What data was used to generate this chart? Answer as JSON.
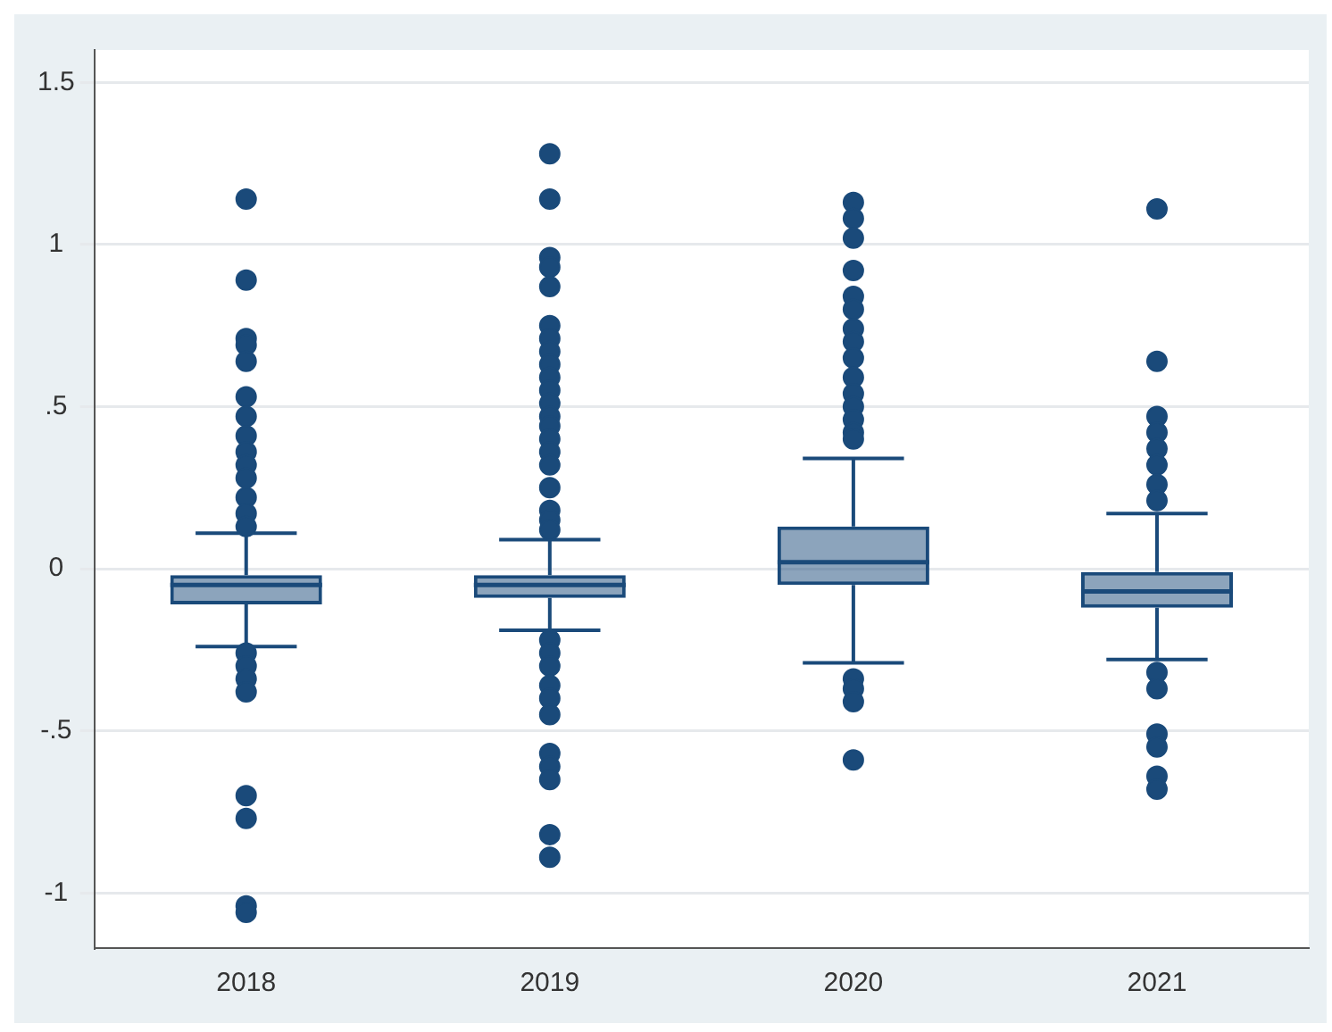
{
  "chart_data": {
    "type": "box",
    "categories": [
      "2018",
      "2019",
      "2020",
      "2021"
    ],
    "color": "#1a4a7a",
    "boxes": [
      {
        "low": -0.24,
        "q1": -0.11,
        "median": -0.05,
        "q3": -0.02,
        "high": 0.11,
        "outliers": [
          1.14,
          0.89,
          0.71,
          0.69,
          0.64,
          0.53,
          0.47,
          0.41,
          0.36,
          0.32,
          0.28,
          0.22,
          0.17,
          0.13,
          -0.26,
          -0.3,
          -0.34,
          -0.38,
          -0.7,
          -0.77,
          -1.04,
          -1.06
        ]
      },
      {
        "low": -0.19,
        "q1": -0.09,
        "median": -0.05,
        "q3": -0.02,
        "high": 0.09,
        "outliers": [
          1.28,
          1.14,
          0.96,
          0.93,
          0.87,
          0.75,
          0.71,
          0.67,
          0.63,
          0.59,
          0.55,
          0.51,
          0.47,
          0.44,
          0.4,
          0.36,
          0.32,
          0.25,
          0.18,
          0.15,
          0.12,
          -0.22,
          -0.26,
          -0.3,
          -0.36,
          -0.4,
          -0.45,
          -0.57,
          -0.61,
          -0.65,
          -0.82,
          -0.89
        ]
      },
      {
        "low": -0.29,
        "q1": -0.05,
        "median": 0.02,
        "q3": 0.13,
        "high": 0.34,
        "outliers": [
          1.13,
          1.08,
          1.02,
          0.92,
          0.84,
          0.8,
          0.74,
          0.7,
          0.65,
          0.59,
          0.54,
          0.5,
          0.46,
          0.42,
          0.4,
          -0.34,
          -0.37,
          -0.41,
          -0.59
        ]
      },
      {
        "low": -0.28,
        "q1": -0.12,
        "median": -0.07,
        "q3": -0.01,
        "high": 0.17,
        "outliers": [
          1.11,
          0.64,
          0.47,
          0.42,
          0.37,
          0.32,
          0.26,
          0.21,
          -0.32,
          -0.37,
          -0.51,
          -0.55,
          -0.64,
          -0.68
        ]
      }
    ],
    "ylim": [
      -1.17,
      1.6
    ],
    "yticks": [
      {
        "value": -1,
        "label": "-1"
      },
      {
        "value": -0.5,
        "label": "-.5"
      },
      0,
      {
        "value": 0.5,
        "label": ".5"
      },
      1,
      1.5
    ],
    "grid": "y",
    "marker": "circle"
  }
}
